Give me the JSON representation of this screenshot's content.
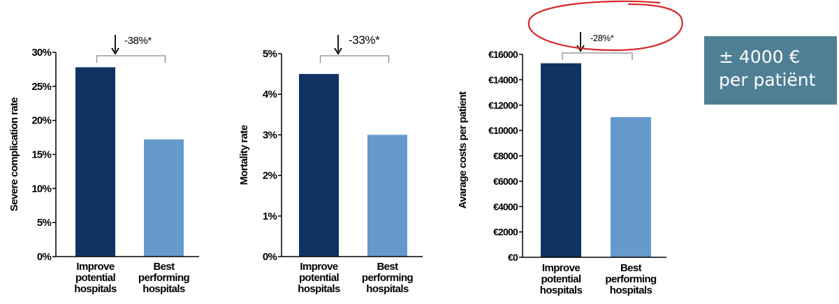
{
  "colors": {
    "series_dark": "#0f3464",
    "series_light": "#6699cc",
    "axis": "#000000",
    "bracket": "#888888",
    "annotation_circle": "#d62828",
    "callout_bg": "#4f7f94",
    "callout_text": "#ffffff"
  },
  "callout": {
    "line1": "± 4000 €",
    "line2": "per patiënt"
  },
  "chart_data": [
    {
      "type": "bar",
      "ylabel": "Severe complication rate",
      "categories": [
        [
          "Improve",
          "potential",
          "hospitals"
        ],
        [
          "Best",
          "performing",
          "hospitals"
        ]
      ],
      "values": [
        27.8,
        17.2
      ],
      "ylim": [
        0,
        30
      ],
      "yticks": [
        "0%",
        "5%",
        "10%",
        "15%",
        "20%",
        "25%",
        "30%"
      ],
      "difference_label": "-38%*",
      "grid": false,
      "highlighted": false
    },
    {
      "type": "bar",
      "ylabel": "Mortality rate",
      "categories": [
        [
          "Improve",
          "potential",
          "hospitals"
        ],
        [
          "Best",
          "performing",
          "hospitals"
        ]
      ],
      "values": [
        4.5,
        3.0
      ],
      "ylim": [
        0,
        5
      ],
      "yticks": [
        "0%",
        "1%",
        "2%",
        "3%",
        "4%",
        "5%"
      ],
      "difference_label": "-33%*",
      "grid": false,
      "highlighted": false
    },
    {
      "type": "bar",
      "ylabel": "Avarage costs per patient",
      "categories": [
        [
          "Improve",
          "potential",
          "hospitals"
        ],
        [
          "Best",
          "performing",
          "hospitals"
        ]
      ],
      "values": [
        15300,
        11050
      ],
      "ylim": [
        0,
        16000
      ],
      "yticks": [
        "€0",
        "€2000",
        "€4000",
        "€6000",
        "€8000",
        "€10000",
        "€12000",
        "€14000",
        "€16000"
      ],
      "difference_label": "-28%*",
      "grid": false,
      "highlighted": true
    }
  ]
}
